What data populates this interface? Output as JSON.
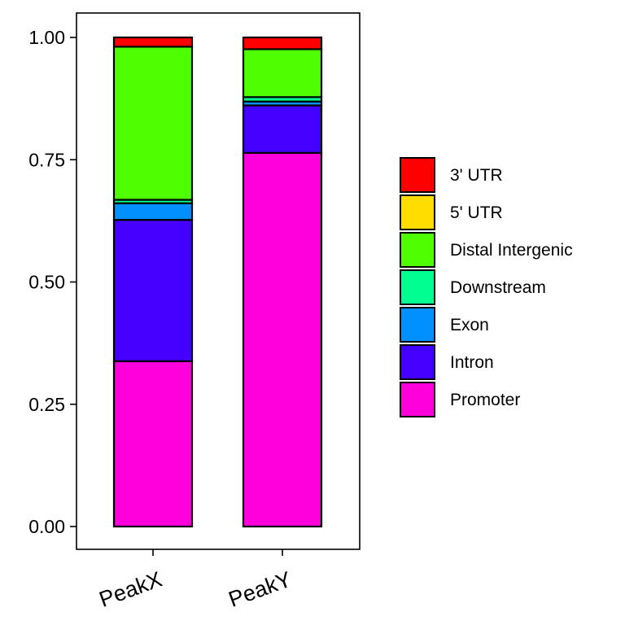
{
  "chart_data": {
    "type": "bar",
    "stacked": true,
    "categories": [
      "PeakX",
      "PeakY"
    ],
    "series": [
      {
        "name": "Promoter",
        "color": "#FF00DD",
        "values": [
          0.338,
          0.764
        ]
      },
      {
        "name": "Intron",
        "color": "#4300FF",
        "values": [
          0.289,
          0.097
        ]
      },
      {
        "name": "Exon",
        "color": "#0090FF",
        "values": [
          0.034,
          0.008
        ]
      },
      {
        "name": "Downstream",
        "color": "#00FF90",
        "values": [
          0.007,
          0.009
        ]
      },
      {
        "name": "Distal Intergenic",
        "color": "#4DFF00",
        "values": [
          0.313,
          0.098
        ]
      },
      {
        "name": "5' UTR",
        "color": "#FFDD00",
        "values": [
          0.0,
          0.0
        ]
      },
      {
        "name": "3' UTR",
        "color": "#FF0000",
        "values": [
          0.019,
          0.024
        ]
      }
    ],
    "legend_order": [
      "3' UTR",
      "5' UTR",
      "Distal Intergenic",
      "Downstream",
      "Exon",
      "Intron",
      "Promoter"
    ],
    "ylim": [
      0,
      1
    ],
    "yticks": [
      "0.00",
      "0.25",
      "0.50",
      "0.75",
      "1.00"
    ],
    "ytick_values": [
      0,
      0.25,
      0.5,
      0.75,
      1
    ],
    "xtick_rotation": "angled",
    "legend_position": "right",
    "grid": false
  }
}
